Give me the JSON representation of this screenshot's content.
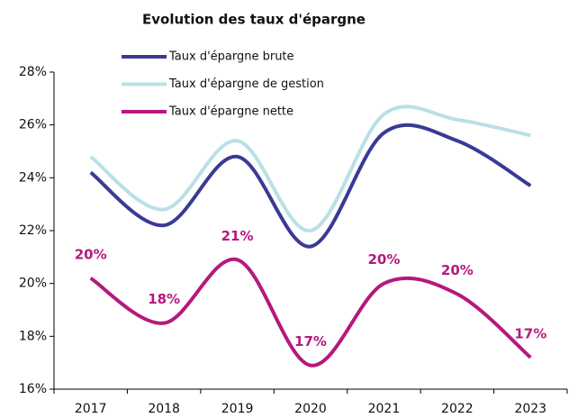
{
  "chart_data": {
    "type": "line",
    "title": "Evolution des taux d'épargne",
    "categories": [
      "2017",
      "2018",
      "2019",
      "2020",
      "2021",
      "2022",
      "2023"
    ],
    "series": [
      {
        "name": "Taux d'épargne brute",
        "color": "#3a3a96",
        "values": [
          24.2,
          22.2,
          24.8,
          21.4,
          25.7,
          25.4,
          23.7
        ]
      },
      {
        "name": "Taux d'épargne de gestion",
        "color": "#b9e0e6",
        "values": [
          24.8,
          22.8,
          25.4,
          22.0,
          26.4,
          26.2,
          25.6
        ]
      },
      {
        "name": "Taux d'épargne nette",
        "color": "#b5197d",
        "values": [
          20.2,
          18.5,
          20.9,
          16.9,
          20.0,
          19.6,
          17.2
        ],
        "value_labels": [
          "20%",
          "18%",
          "21%",
          "17%",
          "20%",
          "20%",
          "17%"
        ]
      }
    ],
    "ylim": [
      16,
      28
    ],
    "yticks": [
      {
        "value": 16,
        "label": "16%"
      },
      {
        "value": 18,
        "label": "18%"
      },
      {
        "value": 20,
        "label": "20%"
      },
      {
        "value": 22,
        "label": "22%"
      },
      {
        "value": 24,
        "label": "24%"
      },
      {
        "value": 26,
        "label": "26%"
      },
      {
        "value": 28,
        "label": "28%"
      }
    ]
  }
}
